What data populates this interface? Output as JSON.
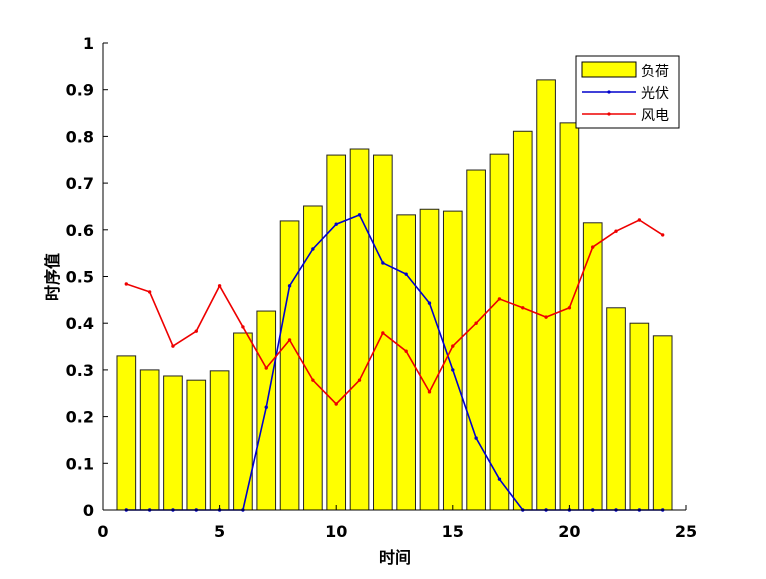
{
  "chart_data": {
    "type": "bar+line",
    "xlabel": "时间",
    "ylabel": "时序值",
    "xlim": [
      0,
      25
    ],
    "ylim": [
      0,
      1
    ],
    "xticks": [
      "0",
      "5",
      "10",
      "15",
      "20",
      "25"
    ],
    "yticks": [
      "0",
      "0.1",
      "0.2",
      "0.3",
      "0.4",
      "0.5",
      "0.6",
      "0.7",
      "0.8",
      "0.9",
      "1"
    ],
    "grid": false,
    "legend_position": "top-right",
    "x": [
      1,
      2,
      3,
      4,
      5,
      6,
      7,
      8,
      9,
      10,
      11,
      12,
      13,
      14,
      15,
      16,
      17,
      18,
      19,
      20,
      21,
      22,
      23,
      24
    ],
    "series": [
      {
        "name": "负荷",
        "kind": "bar",
        "color": "#ffff00",
        "values": [
          0.33,
          0.3,
          0.287,
          0.278,
          0.298,
          0.379,
          0.426,
          0.619,
          0.651,
          0.76,
          0.773,
          0.76,
          0.632,
          0.644,
          0.64,
          0.728,
          0.762,
          0.811,
          0.921,
          0.829,
          0.615,
          0.433,
          0.4,
          0.373
        ]
      },
      {
        "name": "光伏",
        "kind": "line",
        "color": "#0000cc",
        "values": [
          0,
          0,
          0,
          0,
          0,
          0,
          0.22,
          0.48,
          0.559,
          0.612,
          0.632,
          0.529,
          0.505,
          0.443,
          0.3,
          0.154,
          0.066,
          0,
          0,
          0,
          0,
          0,
          0,
          0
        ]
      },
      {
        "name": "风电",
        "kind": "line",
        "color": "#ee0000",
        "values": [
          0.484,
          0.467,
          0.351,
          0.383,
          0.48,
          0.392,
          0.304,
          0.364,
          0.278,
          0.227,
          0.278,
          0.379,
          0.34,
          0.253,
          0.351,
          0.4,
          0.452,
          0.433,
          0.413,
          0.433,
          0.563,
          0.597,
          0.621,
          0.589
        ]
      }
    ]
  }
}
